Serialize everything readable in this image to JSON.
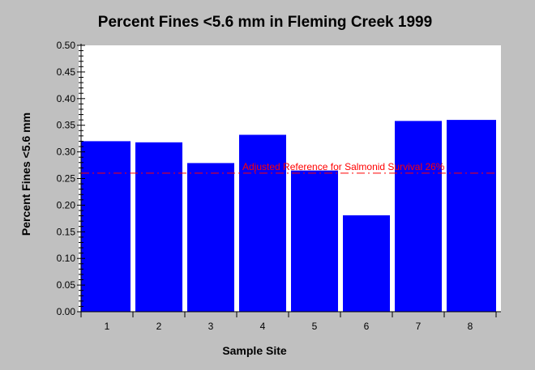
{
  "chart_data": {
    "type": "bar",
    "title": "Percent Fines <5.6 mm in Fleming Creek 1999",
    "xlabel": "Sample Site",
    "ylabel": "Percent Fines <5.6 mm",
    "categories": [
      "1",
      "2",
      "3",
      "4",
      "5",
      "6",
      "7",
      "8"
    ],
    "values": [
      0.32,
      0.318,
      0.279,
      0.332,
      0.265,
      0.181,
      0.358,
      0.36
    ],
    "ylim": [
      0,
      0.5
    ],
    "yticks": [
      "0.00",
      "0.05",
      "0.10",
      "0.15",
      "0.20",
      "0.25",
      "0.30",
      "0.35",
      "0.40",
      "0.45",
      "0.50"
    ],
    "reference_line": {
      "value": 0.26,
      "label": "Adjusted Reference for Salmonid Survival 26%",
      "color": "#ff0000"
    },
    "bar_color": "#0000ff",
    "plot_background": "#ffffff",
    "background": "#c0c0c0",
    "grid": false,
    "legend": "none"
  }
}
